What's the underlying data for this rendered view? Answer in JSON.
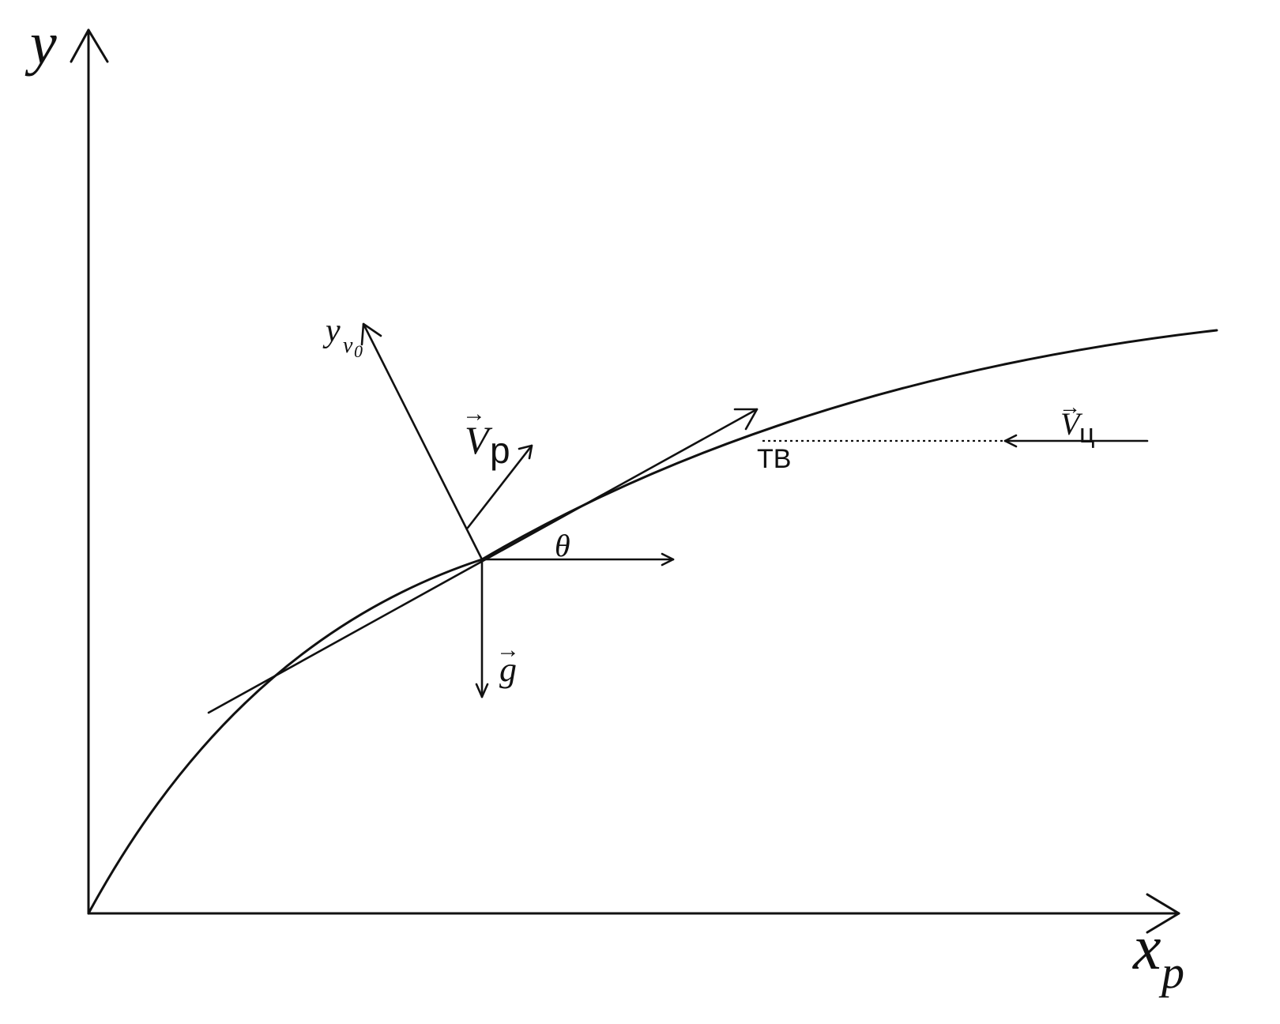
{
  "labels": {
    "y_axis": "y",
    "x_axis_main": "x",
    "x_axis_sub": "p",
    "yv_main": "y",
    "yv_sub": "v",
    "yv_subsub": "0",
    "vr_main": "V",
    "vr_sub": "p",
    "theta": "θ",
    "g": "g",
    "tv": "ТВ",
    "vc_main": "V",
    "vc_sub": "ц",
    "vector_arrow": "→"
  },
  "colors": {
    "stroke": "#111111",
    "background": "#ffffff"
  }
}
